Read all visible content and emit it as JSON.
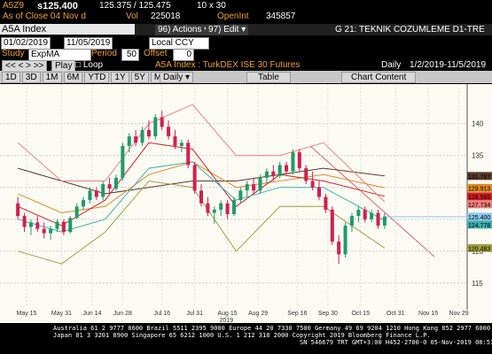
{
  "quote": {
    "ticker": "A5Z9",
    "last": "s125.400",
    "bid_ask": "125.375 / 125.475",
    "size": "10 x 30",
    "as_of": "As of Close 04 Nov d",
    "vol_label": "Vol",
    "vol": "225018",
    "oi_label": "OpenInt",
    "oi": "345857"
  },
  "header": {
    "security": "A5A Index",
    "actions": "96) Actions ▾",
    "edit": "97) Edit ▾",
    "title": "G 21: TEKNIK COZUMLEME D1-TRE"
  },
  "controls": {
    "start": "01/02/2019",
    "end": "11/05/2019",
    "currency": "Local CCY",
    "study_label": "Study",
    "study": "ExpMA",
    "period_label": "Period",
    "period": "50",
    "offset_label": "Offset",
    "offset": "0",
    "play": "Play",
    "loop": "Loop",
    "description": "A5A Index : TurkDEX ISE 30 Futures",
    "frequency": "Daily",
    "range": "1/2/2019-11/5/2019"
  },
  "toolbar": {
    "buttons": [
      "1D",
      "3D",
      "1M",
      "6M",
      "YTD",
      "1Y",
      "5Y",
      "Max"
    ],
    "freq": "Daily ▾",
    "table": "Table",
    "content": "Chart Content"
  },
  "chart_data": {
    "type": "candlestick",
    "xlim": [
      7.5,
      215
    ],
    "ylim": [
      111.5,
      146.2
    ],
    "xticks": [
      {
        "value": 14,
        "label": "May 15"
      },
      {
        "value": 30,
        "label": "May 31"
      },
      {
        "value": 44,
        "label": "Jun 14"
      },
      {
        "value": 58,
        "label": "Jun 28"
      },
      {
        "value": 76,
        "label": "Jul 16"
      },
      {
        "value": 91,
        "label": "Jul 31"
      },
      {
        "value": 106,
        "label": "Aug 15"
      },
      {
        "value": 120,
        "label": "Aug 29"
      },
      {
        "value": 138,
        "label": "Sep 16"
      },
      {
        "value": 152,
        "label": "Sep 30"
      },
      {
        "value": 167,
        "label": "Oct 15"
      },
      {
        "value": 183,
        "label": "Oct 31"
      },
      {
        "value": 198,
        "label": "Nov 15"
      },
      {
        "value": 212,
        "label": "Nov 29"
      }
    ],
    "year_label": "2019",
    "yticks": [
      115,
      120,
      125,
      130,
      135,
      140
    ],
    "grid": true,
    "up_color": "#1f9a6a",
    "down_color": "#d0204f",
    "candles": {
      "x": [
        10,
        13,
        16,
        19,
        22,
        25,
        28,
        31,
        34,
        37,
        40,
        43,
        46,
        49,
        52,
        55,
        58,
        61,
        64,
        67,
        70,
        73,
        76,
        79,
        82,
        85,
        88,
        91,
        94,
        97,
        100,
        103,
        106,
        109,
        112,
        115,
        118,
        121,
        124,
        127,
        130,
        133,
        136,
        139,
        142,
        145,
        148,
        151,
        154,
        157,
        160,
        163,
        166,
        169,
        172,
        175,
        178
      ],
      "open": [
        127.5,
        125.5,
        123.8,
        124.5,
        123.5,
        122.8,
        123.5,
        124.6,
        123,
        125.2,
        127,
        128,
        129.5,
        128.5,
        130.5,
        129.8,
        131.5,
        136.5,
        138,
        137,
        139,
        138,
        141,
        139.5,
        138,
        136.5,
        137,
        133.5,
        129.5,
        127.5,
        126,
        126.5,
        127.5,
        125.8,
        128,
        129.5,
        130.5,
        129.5,
        131.5,
        132.5,
        131.8,
        133.5,
        132.5,
        135.5,
        133,
        131,
        130,
        128.5,
        126.5,
        121.5,
        119.5,
        124,
        125.5,
        126.5,
        125,
        126,
        124
      ],
      "high": [
        128.5,
        126,
        125,
        125.5,
        124.5,
        124,
        125,
        125,
        125.5,
        127.5,
        128.5,
        130,
        130,
        131,
        131.5,
        132,
        137,
        138.5,
        139,
        139.5,
        140.5,
        141.5,
        142,
        140.5,
        139,
        137.5,
        137.5,
        134,
        130.5,
        128.5,
        127,
        128,
        128,
        128.5,
        130,
        131,
        131.5,
        132,
        133,
        133.5,
        134,
        134,
        136,
        136,
        133.5,
        132.5,
        131,
        129,
        127,
        122.5,
        124.5,
        126,
        127,
        127,
        126.5,
        126.5,
        126
      ],
      "low": [
        125,
        123,
        122.5,
        123,
        122,
        121.8,
        123,
        122.5,
        122.8,
        125,
        126.5,
        127.5,
        128,
        128,
        129,
        129.5,
        131,
        135.5,
        136.5,
        136.5,
        137.5,
        137.5,
        139,
        137.5,
        136,
        135.5,
        133,
        129,
        127,
        125.5,
        124.3,
        125.5,
        125,
        125.5,
        127.5,
        128.5,
        129,
        129,
        130.5,
        131,
        131.5,
        132,
        132,
        132.5,
        130.5,
        129.5,
        128,
        126,
        121,
        118,
        119,
        123,
        124.5,
        124.5,
        124.5,
        123.5,
        123.5
      ],
      "close": [
        125.5,
        123.8,
        124.5,
        123.5,
        122.8,
        123.5,
        124.6,
        123,
        125.2,
        127,
        128,
        129.5,
        128.5,
        130.5,
        129.8,
        131.5,
        136.5,
        138,
        137,
        139,
        138,
        141,
        139.5,
        138,
        136.5,
        137,
        133.5,
        129.5,
        127.5,
        126,
        126.5,
        127.5,
        125.8,
        128,
        129.5,
        130.5,
        129.5,
        131.5,
        132.5,
        131.8,
        133.5,
        132.5,
        135.5,
        133,
        131,
        130,
        128.5,
        126.5,
        121.5,
        119.5,
        124,
        125.5,
        126.5,
        125,
        126,
        124,
        125.4
      ]
    },
    "lines": [
      {
        "color": "#5a3a2a",
        "x": [
          10,
          30,
          50,
          70,
          90,
          110,
          130,
          150,
          178
        ],
        "values": [
          133,
          131,
          129,
          130,
          131,
          131,
          132,
          133,
          131.787
        ],
        "value_label": "131.787"
      },
      {
        "color": "#e08a20",
        "x": [
          10,
          30,
          50,
          70,
          90,
          110,
          130,
          150,
          178
        ],
        "values": [
          129,
          126,
          127,
          132,
          134,
          130,
          131,
          132,
          129.913
        ],
        "value_label": "129.913"
      },
      {
        "color": "#d02020",
        "x": [
          10,
          30,
          50,
          70,
          90,
          110,
          130,
          150,
          178
        ],
        "values": [
          127,
          124,
          128,
          137,
          136,
          127,
          132,
          131,
          128.595
        ],
        "value_label": "128.595"
      },
      {
        "color": "#f08080",
        "x": [
          10,
          30,
          50,
          70,
          90,
          110,
          130,
          150,
          178
        ],
        "values": [
          137,
          131,
          131,
          140,
          143,
          135,
          135,
          137,
          127.734
        ],
        "value_label": "127.734"
      },
      {
        "color": "#3fb0b0",
        "x": [
          10,
          30,
          50,
          70,
          90,
          110,
          130,
          150,
          178
        ],
        "values": [
          125,
          123,
          125,
          133,
          134,
          128,
          130,
          130,
          124.778
        ],
        "value_label": "124.778"
      },
      {
        "color": "#a0a040",
        "x": [
          10,
          30,
          50,
          70,
          90,
          110,
          130,
          150,
          178
        ],
        "values": [
          120,
          118,
          123,
          131,
          130,
          120,
          127,
          127,
          120.483
        ],
        "value_label": "120.483"
      }
    ],
    "last_price": 125.4,
    "last_price_label": "125.400",
    "last_price_color": "#8ec8f0"
  },
  "footer": {
    "line1": "Australia 61 2 9777 8600 Brazil 5511 2395 9000 Europe 44 20 7330 7500 Germany 49 69 9204 1210 Hong Kong 852 2977 6000",
    "line2": "Japan 81 3 3201 8900      Singapore 65 6212 1000      U.S. 1 212 318 2000      Copyright 2019 Bloomberg Finance L.P.",
    "line3": "SN 546679 TRT  GMT+3:00 H452-2700-0 05-Nov-2019 08:51:48"
  }
}
